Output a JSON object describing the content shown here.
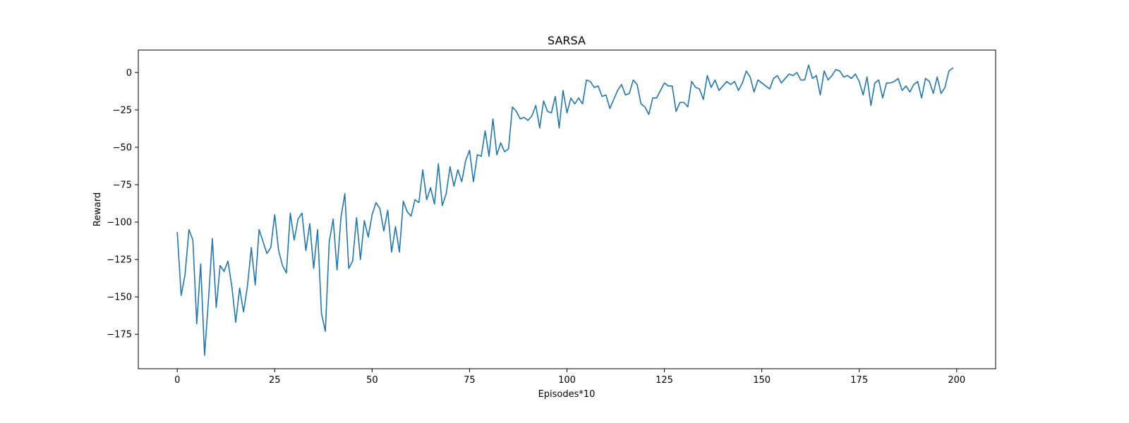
{
  "chart_data": {
    "type": "line",
    "title": "SARSA",
    "xlabel": "Episodes*10",
    "ylabel": "Reward",
    "xlim": [
      -10,
      210
    ],
    "ylim": [
      -198,
      15
    ],
    "xticks": [
      0,
      25,
      50,
      75,
      100,
      125,
      150,
      175,
      200
    ],
    "yticks": [
      0,
      -25,
      -50,
      -75,
      -100,
      -125,
      -150,
      -175
    ],
    "xtick_labels": [
      "0",
      "25",
      "50",
      "75",
      "100",
      "125",
      "150",
      "175",
      "200"
    ],
    "ytick_labels": [
      "0",
      "−25",
      "−50",
      "−75",
      "−100",
      "−125",
      "−150",
      "−175"
    ],
    "grid": false,
    "series": [
      {
        "color": "#1f77b4",
        "values": [
          -107,
          -149,
          -135,
          -105,
          -112,
          -168,
          -128,
          -189,
          -152,
          -111,
          -157,
          -129,
          -133,
          -126,
          -143,
          -167,
          -144,
          -160,
          -143,
          -117,
          -142,
          -105,
          -113,
          -121,
          -117,
          -95,
          -119,
          -129,
          -134,
          -94,
          -112,
          -98,
          -94,
          -119,
          -101,
          -131,
          -105,
          -161,
          -173,
          -113,
          -98,
          -132,
          -97,
          -81,
          -131,
          -126,
          -97,
          -125,
          -99,
          -110,
          -95,
          -87,
          -91,
          -106,
          -92,
          -120,
          -103,
          -120,
          -86,
          -93,
          -96,
          -85,
          -87,
          -65,
          -85,
          -77,
          -88,
          -61,
          -89,
          -81,
          -63,
          -76,
          -65,
          -73,
          -59,
          -52,
          -73,
          -55,
          -56,
          -39,
          -56,
          -31,
          -55,
          -47,
          -53,
          -51,
          -23,
          -26,
          -31,
          -30,
          -32,
          -29,
          -22,
          -37,
          -19,
          -26,
          -27,
          -16,
          -37,
          -12,
          -27,
          -17,
          -21,
          -17,
          -21,
          -5,
          -6,
          -10,
          -9,
          -16,
          -15,
          -24,
          -18,
          -12,
          -8,
          -15,
          -14,
          -5,
          -8,
          -21,
          -23,
          -28,
          -17,
          -17,
          -12,
          -7,
          -9,
          -9,
          -26,
          -20,
          -20,
          -23,
          -6,
          -10,
          -11,
          -18,
          -2,
          -10,
          -5,
          -12,
          -9,
          -6,
          -8,
          -6,
          -12,
          -7,
          1,
          -3,
          -13,
          -5,
          -7,
          -9,
          -11,
          -4,
          -2,
          -7,
          -4,
          -1,
          -2,
          0,
          -5,
          -5,
          5,
          -4,
          -2,
          -15,
          1,
          -5,
          -2,
          2,
          1,
          -3,
          -2,
          -4,
          -1,
          -6,
          -15,
          -3,
          -22,
          -7,
          -5,
          -17,
          -7,
          -7,
          -6,
          -4,
          -12,
          -9,
          -13,
          -8,
          -6,
          -17,
          -4,
          -6,
          -14,
          -3,
          -14,
          -10,
          1,
          3
        ]
      }
    ]
  }
}
